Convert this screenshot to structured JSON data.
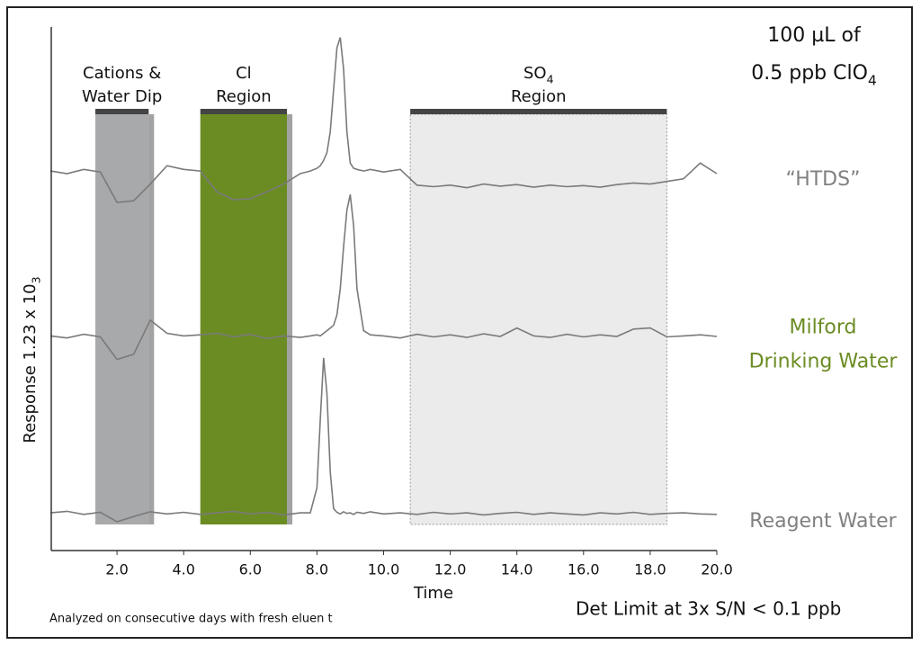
{
  "chart_data": {
    "type": "line",
    "annotations": {
      "sample": [
        {
          "text": "100 µL of"
        },
        {
          "text": "0.5 ppb ClO",
          "sub": "4"
        }
      ],
      "detection_limit": "Det  Limit at 3x S/N < 0.1 ppb",
      "footnote": "Analyzed on consecutive days with fresh eluen t"
    },
    "y_label": {
      "text": "Response 1.23 x 10",
      "sub": "3"
    },
    "x_label": "Time",
    "xlim": [
      0,
      20
    ],
    "ylim": [
      0,
      100
    ],
    "xticks": [
      {
        "value": 2,
        "label": "2.0"
      },
      {
        "value": 4,
        "label": "4.0"
      },
      {
        "value": 6,
        "label": "6.0"
      },
      {
        "value": 8,
        "label": "8.0"
      },
      {
        "value": 10,
        "label": "10.0"
      },
      {
        "value": 12,
        "label": "12.0"
      },
      {
        "value": 14,
        "label": "14.0"
      },
      {
        "value": 16,
        "label": "16.0"
      },
      {
        "value": 18,
        "label": "18.0"
      },
      {
        "value": 20,
        "label": "20.0"
      }
    ],
    "regions": [
      {
        "label": [
          {
            "text": "Cations &"
          },
          {
            "text": "Water Dip"
          }
        ],
        "x": [
          1.35,
          2.95
        ],
        "color": "#a8a9ab"
      },
      {
        "label": [
          {
            "text": "Cl"
          },
          {
            "text": "Region"
          }
        ],
        "x": [
          4.5,
          7.1
        ],
        "color": "#6b8c23"
      },
      {
        "label": [
          {
            "text": "SO",
            "sub": "4"
          },
          {
            "text": "Region"
          }
        ],
        "x": [
          10.8,
          18.5
        ],
        "color": "#ebebec"
      }
    ],
    "x": [
      0,
      0.5,
      1.0,
      1.5,
      2.0,
      2.5,
      3.0,
      3.5,
      4.0,
      4.5,
      5.0,
      5.5,
      6.0,
      6.5,
      7.0,
      7.5,
      7.8,
      8.0,
      8.1,
      8.2,
      8.3,
      8.4,
      8.5,
      8.6,
      8.7,
      8.8,
      8.9,
      9.0,
      9.1,
      9.2,
      9.4,
      9.6,
      10.0,
      10.5,
      11.0,
      11.5,
      12.0,
      12.5,
      13.0,
      13.5,
      14.0,
      14.5,
      15.0,
      15.5,
      16.0,
      16.5,
      17.0,
      17.5,
      18.0,
      18.5,
      19.0,
      19.5,
      20.0
    ],
    "series": [
      {
        "name": [
          "“HTDS”"
        ],
        "color": "#7a7a7a",
        "label_color": "#808080",
        "values": [
          72.5,
          72,
          72.8,
          72.3,
          66.5,
          66.8,
          70,
          73.5,
          72.8,
          72.5,
          68.5,
          67,
          67.2,
          68.5,
          70,
          72,
          72.5,
          73,
          73.5,
          74.5,
          76,
          80,
          88,
          96,
          98,
          92,
          80,
          74,
          73,
          72.8,
          72.5,
          72.8,
          72.3,
          72.8,
          69.8,
          69.5,
          69.8,
          69.3,
          70,
          69.6,
          69.9,
          69.4,
          69.8,
          69.5,
          69.7,
          69.4,
          69.9,
          70.2,
          70,
          70.5,
          71,
          74,
          72
        ]
      },
      {
        "name": [
          "Milford",
          "Drinking Water"
        ],
        "color": "#7a7a7a",
        "label_color": "#6b8c23",
        "values": [
          41,
          40.6,
          41.3,
          40.8,
          36.5,
          37.5,
          44,
          41.5,
          41,
          41.2,
          41.5,
          40.8,
          41.3,
          40.5,
          41,
          40.7,
          41,
          41.2,
          41,
          41.5,
          42,
          42.5,
          43,
          45,
          50,
          58,
          65,
          68,
          62,
          50,
          42,
          41.2,
          41,
          40.6,
          41.3,
          40.8,
          41.2,
          40.7,
          41.4,
          40.9,
          42.5,
          41,
          40.7,
          41.3,
          40.8,
          41.2,
          40.9,
          42.3,
          42.5,
          40.8,
          41,
          41.2,
          40.9
        ]
      },
      {
        "name": [
          "Reagent  Water"
        ],
        "color": "#7a7a7a",
        "label_color": "#808080",
        "values": [
          7.2,
          7.5,
          6.9,
          7.3,
          5.5,
          6.5,
          7.4,
          7,
          7.3,
          6.9,
          7.2,
          7.5,
          7,
          7.3,
          6.8,
          7.2,
          7.2,
          12,
          25,
          36.8,
          30,
          15,
          8,
          7.3,
          7,
          7.4,
          7.1,
          7.2,
          6.9,
          7.3,
          7.1,
          7.4,
          7,
          7.2,
          6.9,
          7.3,
          7,
          7.2,
          6.8,
          7.1,
          7.3,
          6.9,
          7.2,
          7,
          6.8,
          7.2,
          7,
          7.3,
          6.9,
          7.1,
          7.2,
          7,
          6.9
        ]
      }
    ]
  }
}
